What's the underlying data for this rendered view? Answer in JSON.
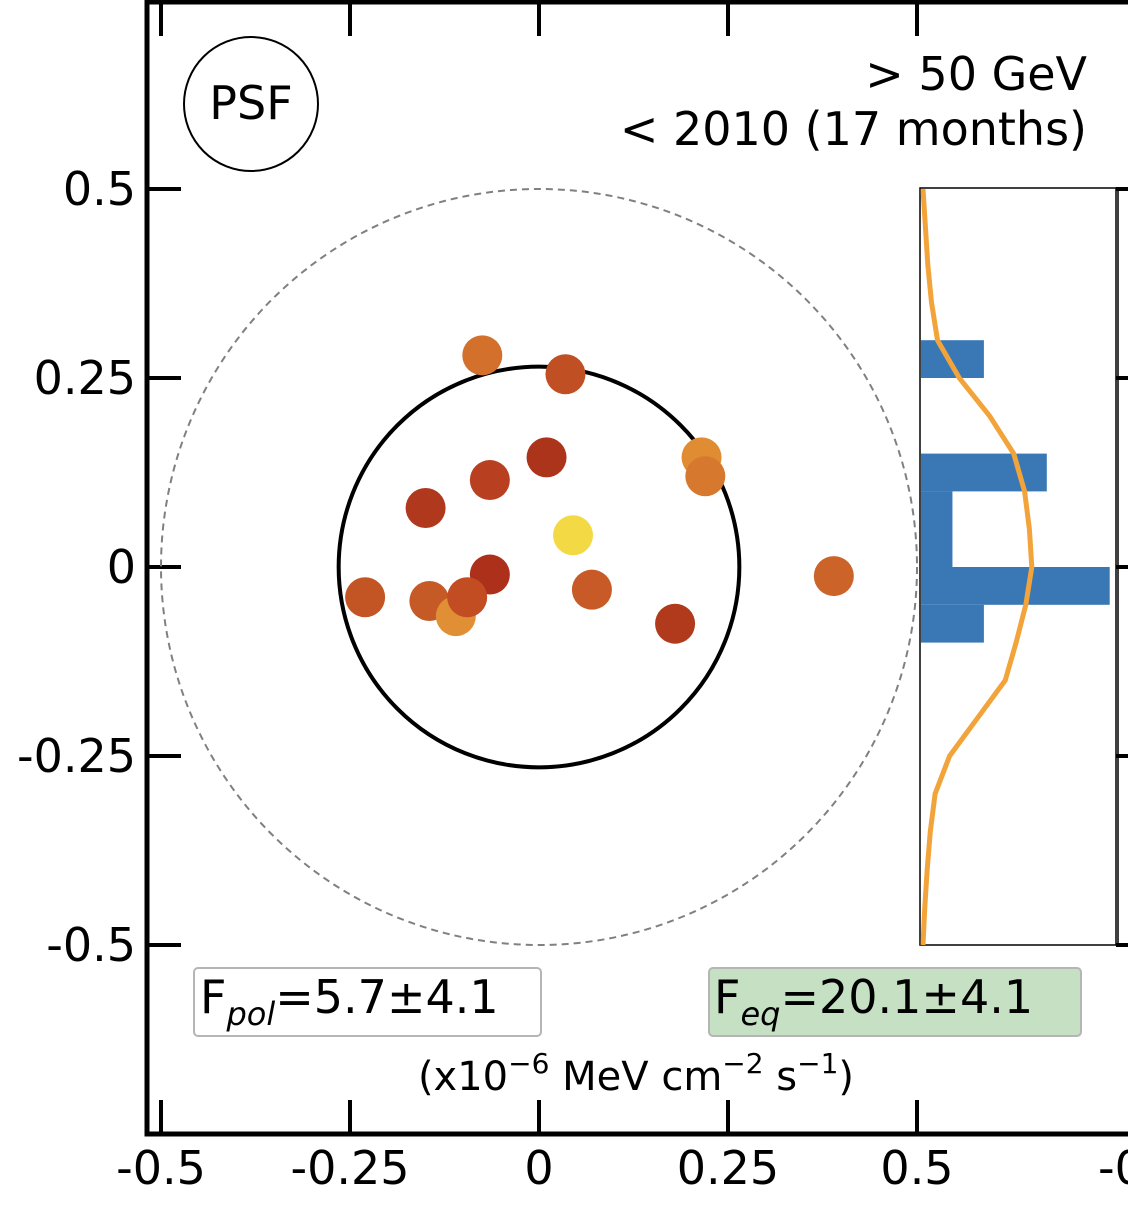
{
  "colors": {
    "frame": "#000000",
    "dashed_circle": "#808080",
    "histogram_bar": "#3a78b5",
    "profile_curve": "#f2a33a",
    "flux_eq_box_fill": "#c6e0c4",
    "flux_box_border": "#b5b5b5"
  },
  "chart_data": {
    "type": "scatter",
    "xlim": [
      -0.52,
      0.78
    ],
    "ylim": [
      -0.75,
      0.75
    ],
    "x_ticks": [
      -0.5,
      -0.25,
      0,
      0.25,
      0.5
    ],
    "x_tick_labels": [
      "-0.5",
      "-0.25",
      "0",
      "0.25",
      "0.5"
    ],
    "y_ticks": [
      -0.5,
      -0.25,
      0,
      0.25,
      0.5
    ],
    "y_tick_labels": [
      "-0.5",
      "-0.25",
      "0",
      "0.25",
      "0.5"
    ],
    "cutoff_tick_label": "-0",
    "grid": false,
    "legend": "none",
    "psf_label": "PSF",
    "annotation_energy": "> 50 GeV",
    "annotation_period": "< 2010 (17 months)",
    "flux_pol": {
      "symbol": "F",
      "subscript": "pol",
      "value": "=5.7±4.1"
    },
    "flux_eq": {
      "symbol": "F",
      "subscript": "eq",
      "value": "=20.1±4.1"
    },
    "flux_units": {
      "prefix": "(x10",
      "exp1": "−6",
      "mid": " MeV cm",
      "exp2": "−2",
      "mid2": " s",
      "exp3": "−1",
      "suffix": ")"
    },
    "inner_circle_radius": 0.265,
    "outer_circle_radius": 0.5,
    "points": [
      {
        "x": -0.075,
        "y": 0.28,
        "color": "#d2702c"
      },
      {
        "x": 0.035,
        "y": 0.255,
        "color": "#c04f23"
      },
      {
        "x": 0.215,
        "y": 0.145,
        "color": "#e08c32"
      },
      {
        "x": 0.22,
        "y": 0.12,
        "color": "#d6782d"
      },
      {
        "x": 0.01,
        "y": 0.145,
        "color": "#ac341b"
      },
      {
        "x": -0.065,
        "y": 0.115,
        "color": "#b84020"
      },
      {
        "x": -0.15,
        "y": 0.078,
        "color": "#b0381c"
      },
      {
        "x": 0.045,
        "y": 0.042,
        "color": "#f3da45"
      },
      {
        "x": -0.065,
        "y": -0.01,
        "color": "#ac301a"
      },
      {
        "x": -0.23,
        "y": -0.04,
        "color": "#c35525"
      },
      {
        "x": -0.145,
        "y": -0.045,
        "color": "#c65a26"
      },
      {
        "x": -0.11,
        "y": -0.065,
        "color": "#e18f35"
      },
      {
        "x": -0.095,
        "y": -0.04,
        "color": "#c24d23"
      },
      {
        "x": 0.07,
        "y": -0.03,
        "color": "#c75a26"
      },
      {
        "x": 0.18,
        "y": -0.075,
        "color": "#b13a1d"
      },
      {
        "x": 0.39,
        "y": -0.012,
        "color": "#cc6429"
      }
    ],
    "y_histogram": [
      {
        "y0": 0.25,
        "y1": 0.3,
        "count": 1
      },
      {
        "y0": 0.1,
        "y1": 0.15,
        "count": 2
      },
      {
        "y0": 0.0,
        "y1": 0.1,
        "count": 0.5
      },
      {
        "y0": -0.05,
        "y1": 0.0,
        "count": 3
      },
      {
        "y0": -0.1,
        "y1": -0.05,
        "count": 1
      }
    ],
    "y_histogram_xlim": [
      0,
      3.1
    ],
    "profile": [
      {
        "y": 0.5,
        "v": 0.0
      },
      {
        "y": 0.45,
        "v": 0.02
      },
      {
        "y": 0.4,
        "v": 0.04
      },
      {
        "y": 0.35,
        "v": 0.07
      },
      {
        "y": 0.3,
        "v": 0.12
      },
      {
        "y": 0.25,
        "v": 0.3
      },
      {
        "y": 0.2,
        "v": 0.55
      },
      {
        "y": 0.15,
        "v": 0.75
      },
      {
        "y": 0.1,
        "v": 0.84
      },
      {
        "y": 0.05,
        "v": 0.88
      },
      {
        "y": 0.0,
        "v": 0.9
      },
      {
        "y": -0.05,
        "v": 0.85
      },
      {
        "y": -0.1,
        "v": 0.77
      },
      {
        "y": -0.15,
        "v": 0.68
      },
      {
        "y": -0.2,
        "v": 0.45
      },
      {
        "y": -0.25,
        "v": 0.22
      },
      {
        "y": -0.3,
        "v": 0.1
      },
      {
        "y": -0.35,
        "v": 0.06
      },
      {
        "y": -0.4,
        "v": 0.035
      },
      {
        "y": -0.45,
        "v": 0.015
      },
      {
        "y": -0.5,
        "v": 0.0
      }
    ],
    "profile_vlim": [
      0,
      1.0
    ]
  }
}
